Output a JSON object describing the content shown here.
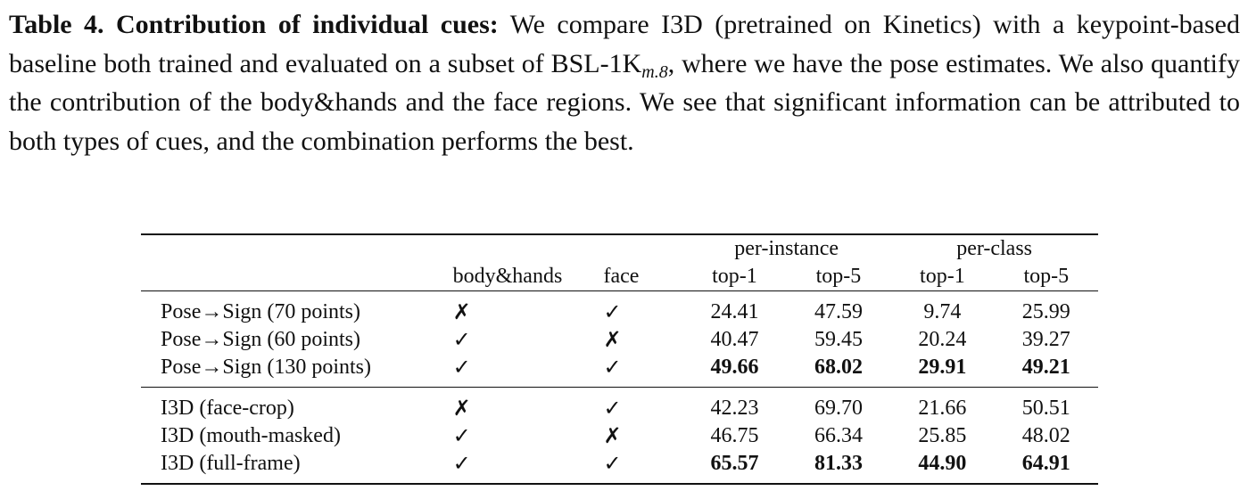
{
  "caption": {
    "label": "Table 4. Contribution of individual cues:",
    "text_before_sub": " We compare I3D (pretrained on Kinetics) with a keypoint-based baseline both trained and evaluated on a subset of BSL-1K",
    "subscript": "m.8",
    "text_after_sub": ", where we have the pose estimates. We also quantify the contribution of the body&hands and the face regions. We see that significant information can be attributed to both types of cues, and the combination performs the best."
  },
  "table": {
    "group_headers": {
      "per_instance": "per-instance",
      "per_class": "per-class"
    },
    "column_headers": {
      "method": "",
      "body_hands": "body&hands",
      "face": "face",
      "pi_top1": "top-1",
      "pi_top5": "top-5",
      "pc_top1": "top-1",
      "pc_top5": "top-5"
    },
    "marks": {
      "yes": "✓",
      "no": "✗"
    },
    "rows": [
      {
        "method": "Pose→Sign (70 points)",
        "body_hands": "✗",
        "face": "✓",
        "pi_top1": "24.41",
        "pi_top5": "47.59",
        "pc_top1": "9.74",
        "pc_top5": "25.99",
        "bold": false
      },
      {
        "method": "Pose→Sign (60 points)",
        "body_hands": "✓",
        "face": "✗",
        "pi_top1": "40.47",
        "pi_top5": "59.45",
        "pc_top1": "20.24",
        "pc_top5": "39.27",
        "bold": false
      },
      {
        "method": "Pose→Sign (130 points)",
        "body_hands": "✓",
        "face": "✓",
        "pi_top1": "49.66",
        "pi_top5": "68.02",
        "pc_top1": "29.91",
        "pc_top5": "49.21",
        "bold": true
      },
      {
        "method": "I3D (face-crop)",
        "body_hands": "✗",
        "face": "✓",
        "pi_top1": "42.23",
        "pi_top5": "69.70",
        "pc_top1": "21.66",
        "pc_top5": "50.51",
        "bold": false
      },
      {
        "method": "I3D (mouth-masked)",
        "body_hands": "✓",
        "face": "✗",
        "pi_top1": "46.75",
        "pi_top5": "66.34",
        "pc_top1": "25.85",
        "pc_top5": "48.02",
        "bold": false
      },
      {
        "method": "I3D (full-frame)",
        "body_hands": "✓",
        "face": "✓",
        "pi_top1": "65.57",
        "pi_top5": "81.33",
        "pc_top1": "44.90",
        "pc_top5": "64.91",
        "bold": true
      }
    ]
  }
}
